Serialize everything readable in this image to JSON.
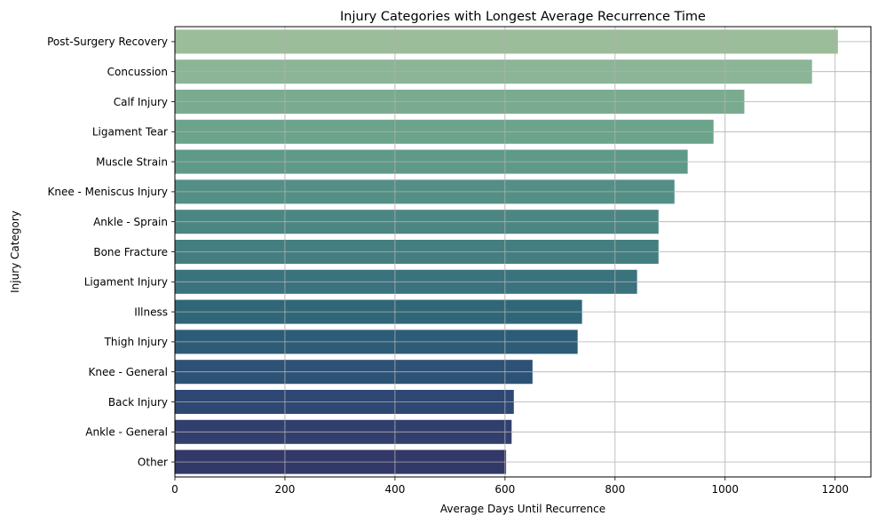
{
  "chart_data": {
    "type": "bar",
    "orientation": "horizontal",
    "title": "Injury Categories with Longest Average Recurrence Time",
    "xlabel": "Average Days Until Recurrence",
    "ylabel": "Injury Category",
    "xlim": [
      0,
      1265
    ],
    "xticks": [
      0,
      200,
      400,
      600,
      800,
      1000,
      1200
    ],
    "grid": true,
    "categories": [
      "Post-Surgery Recovery",
      "Concussion",
      "Calf Injury",
      "Ligament Tear",
      "Muscle Strain",
      "Knee - Meniscus Injury",
      "Ankle - Sprain",
      "Bone Fracture",
      "Ligament Injury",
      "Illness",
      "Thigh Injury",
      "Knee - General",
      "Back Injury",
      "Ankle - General",
      "Other"
    ],
    "values": [
      1205,
      1158,
      1035,
      979,
      932,
      908,
      879,
      879,
      840,
      740,
      732,
      650,
      616,
      612,
      602
    ],
    "colors": [
      "#9bbd99",
      "#8bb596",
      "#7aab90",
      "#6ba38b",
      "#5f9a88",
      "#538f85",
      "#4b8682",
      "#457e80",
      "#3a727d",
      "#2f6779",
      "#2c5c77",
      "#2d5276",
      "#2e4773",
      "#313f6e",
      "#323868"
    ]
  }
}
